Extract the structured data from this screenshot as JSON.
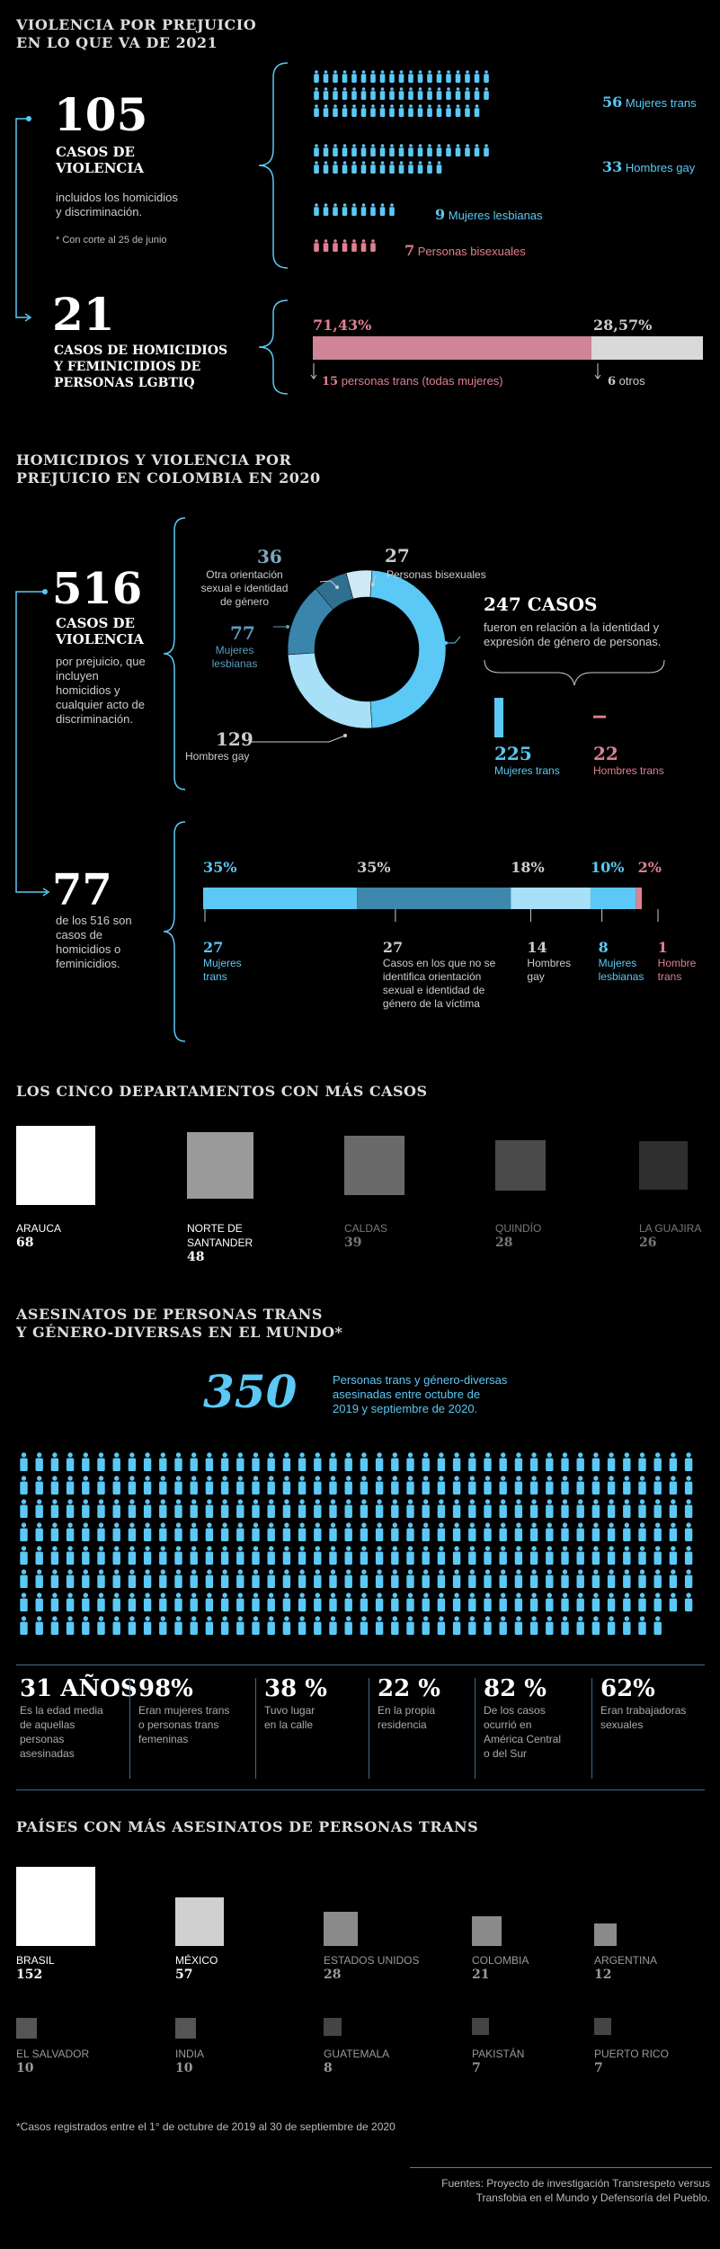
{
  "section1": {
    "title": [
      "VIOLENCIA POR PREJUICIO",
      "EN LO QUE VA DE 2021"
    ],
    "cases_num": "105",
    "cases_label": [
      "CASOS DE",
      "VIOLENCIA"
    ],
    "cases_desc": [
      "incluidos los homicidios",
      "y discriminación."
    ],
    "cases_note": "* Con corte al 25 de junio",
    "homicides_num": "21",
    "homicides_label": [
      "CASOS DE HOMICIDIOS",
      "Y FEMINICIDIOS DE",
      "PERSONAS LGBTIQ"
    ],
    "groups": [
      {
        "count": "56",
        "label": "Mujeres trans",
        "n": 56,
        "color": "#5bc8f5"
      },
      {
        "count": "33",
        "label": "Hombres gay",
        "n": 33,
        "color": "#5bc8f5"
      },
      {
        "count": "9",
        "label": "Mujeres lesbianas",
        "n": 9,
        "color": "#5bc8f5"
      },
      {
        "count": "7",
        "label": "Personas bisexuales",
        "n": 7,
        "color": "#e07f91"
      }
    ],
    "split": {
      "left_pct": "71,43%",
      "right_pct": "28,57%",
      "left_value": 71.43,
      "left_count": "15",
      "left_label": "personas trans (todas mujeres)",
      "right_count": "6",
      "right_label": "otros"
    }
  },
  "section2": {
    "title": [
      "HOMICIDIOS Y VIOLENCIA POR",
      "PREJUICIO EN COLOMBIA EN 2020"
    ],
    "total_num": "516",
    "total_label": [
      "CASOS DE",
      "VIOLENCIA"
    ],
    "total_desc": [
      "por prejuicio, que",
      "incluyen",
      "homicidios y",
      "cualquier acto de",
      "discriminación."
    ],
    "donut": {
      "slices": [
        {
          "count": "129",
          "label": [
            "Hombres gay"
          ],
          "value": 129,
          "color": "#5bc8f5"
        },
        {
          "count": "77",
          "label": [
            "Mujeres",
            "lesbianas"
          ],
          "value": 77,
          "color": "#a7e0f7"
        },
        {
          "count": "36",
          "label": [
            "Otra orientación",
            "sexual e identidad",
            "de género"
          ],
          "value": 36,
          "color": "#3b8fb5"
        },
        {
          "count": "27",
          "label": [
            "Personas bisexuales"
          ],
          "value": 27,
          "color": "#7fb3c9"
        },
        {
          "count": "247",
          "label": [],
          "value": 247,
          "color": "#5bc8f5"
        }
      ]
    },
    "gender_cases": {
      "title": "247 CASOS",
      "desc": [
        "fueron en relación a la identidad y",
        "expresión de género de personas."
      ],
      "trans_women_count": "225",
      "trans_women_label": "Mujeres trans",
      "trans_women_value": 225,
      "trans_men_count": "22",
      "trans_men_label": "Hombres trans",
      "trans_men_value": 22
    },
    "homicides_num": "77",
    "homicides_desc": [
      "de los 516 son",
      "casos de",
      "homicidios o",
      "feminicidios."
    ],
    "homicide_bar": [
      {
        "pct": "35%",
        "count": "27",
        "label": [
          "Mujeres",
          "trans"
        ],
        "value": 27,
        "color": "#5bc8f5"
      },
      {
        "pct": "35%",
        "count": "27",
        "label": [
          "Casos en los que no se",
          "identifica orientación",
          "sexual e identidad de",
          "género de la víctima"
        ],
        "value": 27,
        "color": "#3b8fb5"
      },
      {
        "pct": "18%",
        "count": "14",
        "label": [
          "Hombres",
          "gay"
        ],
        "value": 14,
        "color": "#a7e0f7"
      },
      {
        "pct": "10%",
        "count": "8",
        "label": [
          "Mujeres",
          "lesbianas"
        ],
        "value": 8,
        "color": "#5bc8f5"
      },
      {
        "pct": "2%",
        "count": "1",
        "label": [
          "Hombre",
          "trans"
        ],
        "value": 1,
        "color": "#e07f91"
      }
    ]
  },
  "section3": {
    "title": "LOS CINCO DEPARTAMENTOS CON MÁS CASOS",
    "departments": [
      {
        "name": [
          "ARAUCA"
        ],
        "value": "68",
        "v": 68,
        "color": "#ffffff"
      },
      {
        "name": [
          "NORTE DE",
          "SANTANDER"
        ],
        "value": "48",
        "v": 48,
        "color": "#9a9a9a"
      },
      {
        "name": [
          "CALDAS"
        ],
        "value": "39",
        "v": 39,
        "color": "#6a6a6a"
      },
      {
        "name": [
          "QUINDÍO"
        ],
        "value": "28",
        "v": 28,
        "color": "#4a4a4a"
      },
      {
        "name": [
          "LA GUAJIRA"
        ],
        "value": "26",
        "v": 26,
        "color": "#2f2f2f"
      }
    ]
  },
  "section4": {
    "title": [
      "ASESINATOS DE PERSONAS TRANS",
      "Y GÉNERO-DIVERSAS EN EL MUNDO*"
    ],
    "total_num": "350",
    "total_desc": [
      "Personas trans y género-diversas",
      "asesinadas entre octubre de",
      "2019 y septiembre de 2020."
    ],
    "people_count": 350,
    "stats": [
      {
        "value": "31 AÑOS",
        "desc": [
          "Es la edad media",
          "de aquellas",
          "personas",
          "asesinadas"
        ]
      },
      {
        "value": "98%",
        "desc": [
          "Eran mujeres trans",
          "o personas trans",
          "femeninas"
        ]
      },
      {
        "value": "38 %",
        "desc": [
          "Tuvo lugar",
          "en la calle"
        ]
      },
      {
        "value": "22 %",
        "desc": [
          "En la propia",
          "residencia"
        ]
      },
      {
        "value": "82 %",
        "desc": [
          "De los casos",
          "ocurrió en",
          "América Central",
          "o del Sur"
        ]
      },
      {
        "value": "62%",
        "desc": [
          "Eran trabajadoras",
          "sexuales"
        ]
      }
    ]
  },
  "section5": {
    "title": "PAÍSES CON MÁS ASESINATOS DE PERSONAS TRANS",
    "countries": [
      {
        "name": "BRASIL",
        "value": "152",
        "v": 152,
        "color": "#ffffff"
      },
      {
        "name": "MÉXICO",
        "value": "57",
        "v": 57,
        "color": "#d0d0d0"
      },
      {
        "name": "ESTADOS UNIDOS",
        "value": "28",
        "v": 28,
        "color": "#8a8a8a"
      },
      {
        "name": "COLOMBIA",
        "value": "21",
        "v": 21,
        "color": "#8a8a8a"
      },
      {
        "name": "ARGENTINA",
        "value": "12",
        "v": 12,
        "color": "#8a8a8a"
      },
      {
        "name": "EL SALVADOR",
        "value": "10",
        "v": 10,
        "color": "#555555"
      },
      {
        "name": "INDIA",
        "value": "10",
        "v": 10,
        "color": "#555555"
      },
      {
        "name": "GUATEMALA",
        "value": "8",
        "v": 8,
        "color": "#444444"
      },
      {
        "name": "PAKISTÁN",
        "value": "7",
        "v": 7,
        "color": "#444444"
      },
      {
        "name": "PUERTO RICO",
        "value": "7",
        "v": 7,
        "color": "#444444"
      }
    ],
    "footnote": "*Casos registrados entre el 1° de octubre de 2019 al 30 de septiembre de 2020",
    "sources": [
      "Fuentes: Proyecto de investigación Transrespeto versus",
      "Transfobia en el Mundo y Defensoría del Pueblo."
    ]
  },
  "chart_data": [
    {
      "type": "bar",
      "title": "VIOLENCIA POR PREJUICIO EN LO QUE VA DE 2021",
      "categories": [
        "Mujeres trans",
        "Hombres gay",
        "Mujeres lesbianas",
        "Personas bisexuales"
      ],
      "values": [
        56,
        33,
        9,
        7
      ]
    },
    {
      "type": "bar",
      "categories": [
        "personas trans (todas mujeres)",
        "otros"
      ],
      "values": [
        15,
        6
      ],
      "percentages": [
        71.43,
        28.57
      ]
    },
    {
      "type": "pie",
      "title": "HOMICIDIOS Y VIOLENCIA POR PREJUICIO EN COLOMBIA EN 2020",
      "categories": [
        "Hombres gay",
        "Mujeres lesbianas",
        "Otra orientación sexual e identidad de género",
        "Personas bisexuales",
        "247 CASOS"
      ],
      "values": [
        129,
        77,
        36,
        27,
        247
      ]
    },
    {
      "type": "bar",
      "categories": [
        "Mujeres trans",
        "Hombres trans"
      ],
      "values": [
        225,
        22
      ]
    },
    {
      "type": "bar",
      "categories": [
        "Mujeres trans",
        "Casos en los que no se identifica orientación sexual e identidad de género de la víctima",
        "Hombres gay",
        "Mujeres lesbianas",
        "Hombre trans"
      ],
      "values": [
        27,
        27,
        14,
        8,
        1
      ],
      "percentages": [
        35,
        35,
        18,
        10,
        2
      ]
    },
    {
      "type": "bar",
      "title": "LOS CINCO DEPARTAMENTOS CON MÁS CASOS",
      "categories": [
        "ARAUCA",
        "NORTE DE SANTANDER",
        "CALDAS",
        "QUINDÍO",
        "LA GUAJIRA"
      ],
      "values": [
        68,
        48,
        39,
        28,
        26
      ]
    },
    {
      "type": "bar",
      "title": "PAÍSES CON MÁS ASESINATOS DE PERSONAS TRANS",
      "categories": [
        "BRASIL",
        "MÉXICO",
        "ESTADOS UNIDOS",
        "COLOMBIA",
        "ARGENTINA",
        "EL SALVADOR",
        "INDIA",
        "GUATEMALA",
        "PAKISTÁN",
        "PUERTO RICO"
      ],
      "values": [
        152,
        57,
        28,
        21,
        12,
        10,
        10,
        8,
        7,
        7
      ]
    }
  ]
}
